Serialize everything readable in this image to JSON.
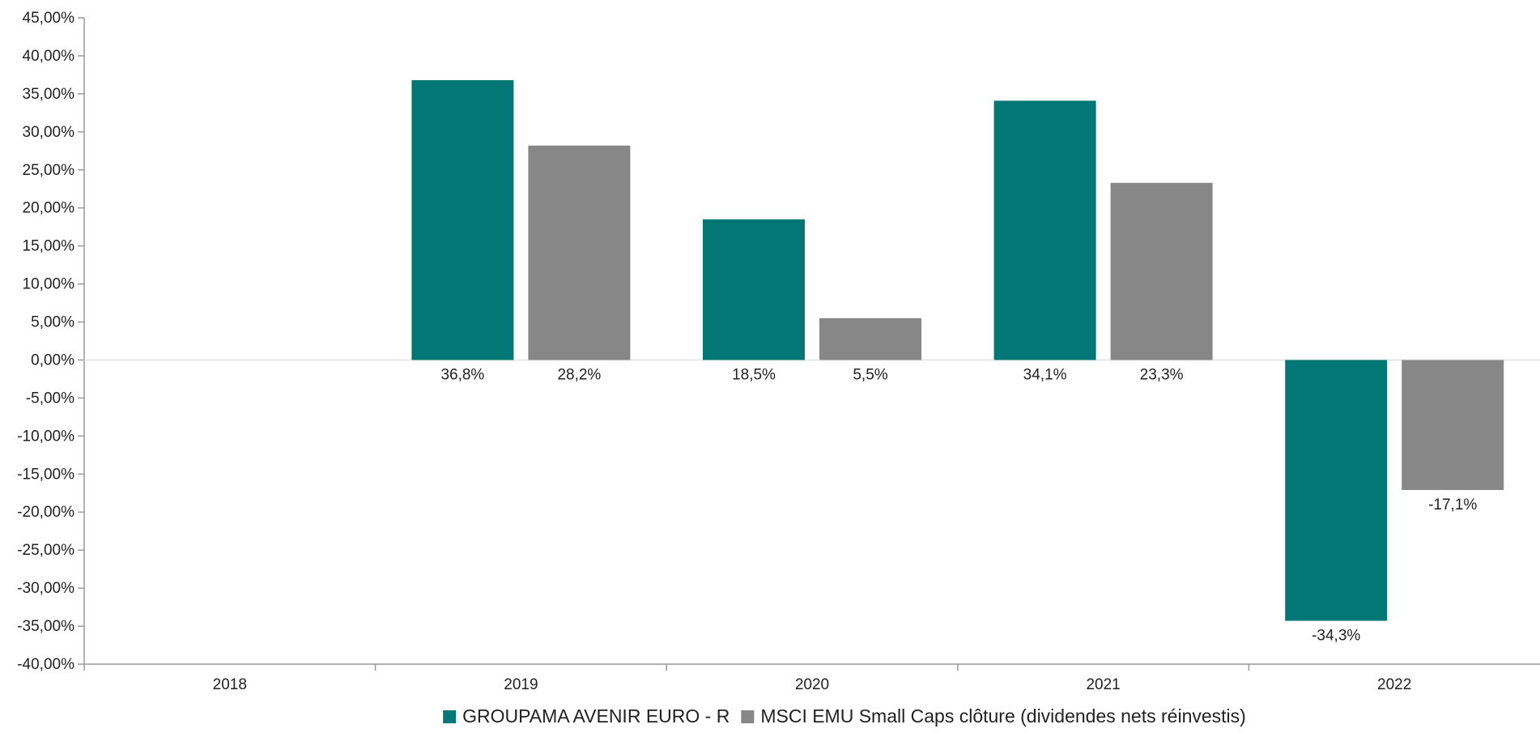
{
  "chart_data": {
    "type": "bar",
    "categories": [
      "2018",
      "2019",
      "2020",
      "2021",
      "2022"
    ],
    "series": [
      {
        "name": "GROUPAMA AVENIR EURO - R",
        "color": "#037676",
        "values": [
          null,
          36.8,
          18.5,
          34.1,
          -34.3
        ],
        "labels": [
          "",
          "36,8%",
          "18,5%",
          "34,1%",
          "-34,3%"
        ]
      },
      {
        "name": "MSCI EMU Small Caps clôture (dividendes nets réinvestis)",
        "color": "#878787",
        "values": [
          null,
          28.2,
          5.5,
          23.3,
          -17.1
        ],
        "labels": [
          "",
          "28,2%",
          "5,5%",
          "23,3%",
          "-17,1%"
        ]
      }
    ],
    "ylim": [
      -40,
      45
    ],
    "yticks": [
      45,
      40,
      35,
      30,
      25,
      20,
      15,
      10,
      5,
      0,
      -5,
      -10,
      -15,
      -20,
      -25,
      -30,
      -35,
      -40
    ],
    "ytick_labels": [
      "45,00%",
      "40,00%",
      "35,00%",
      "30,00%",
      "25,00%",
      "20,00%",
      "15,00%",
      "10,00%",
      "5,00%",
      "0,00%",
      "-5,00%",
      "-10,00%",
      "-15,00%",
      "-20,00%",
      "-25,00%",
      "-30,00%",
      "-35,00%",
      "-40,00%"
    ],
    "title": "",
    "xlabel": "",
    "ylabel": "",
    "grid": false,
    "legend_position": "bottom"
  }
}
